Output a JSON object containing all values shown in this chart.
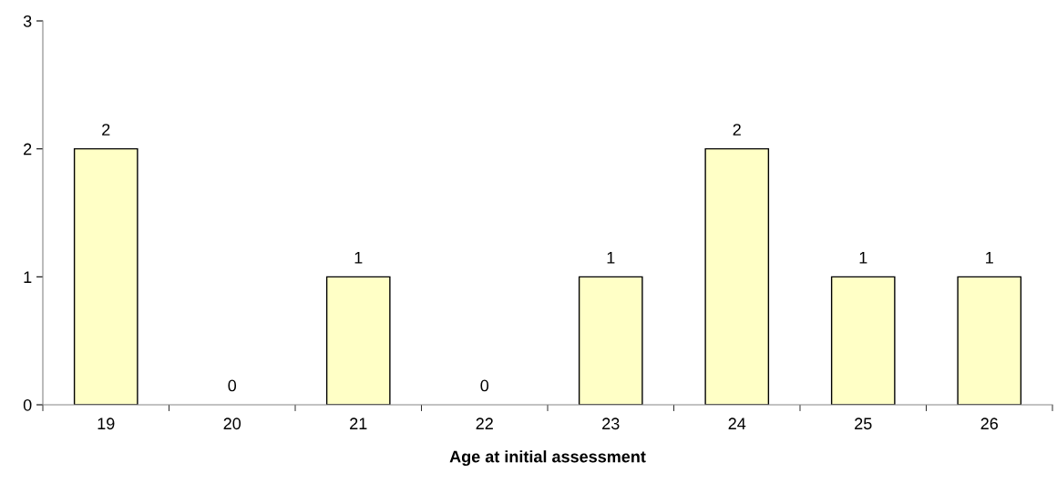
{
  "chart_data": {
    "type": "bar",
    "xlabel": "Age at initial assessment",
    "categories": [
      "19",
      "20",
      "21",
      "22",
      "23",
      "24",
      "25",
      "26"
    ],
    "values": [
      2,
      0,
      1,
      0,
      1,
      2,
      1,
      1
    ],
    "color": "#ffffc6",
    "ylim": [
      0,
      3
    ],
    "yticks": [
      0,
      1,
      2,
      3
    ],
    "data_labels": true,
    "grid": false,
    "legend": false
  }
}
